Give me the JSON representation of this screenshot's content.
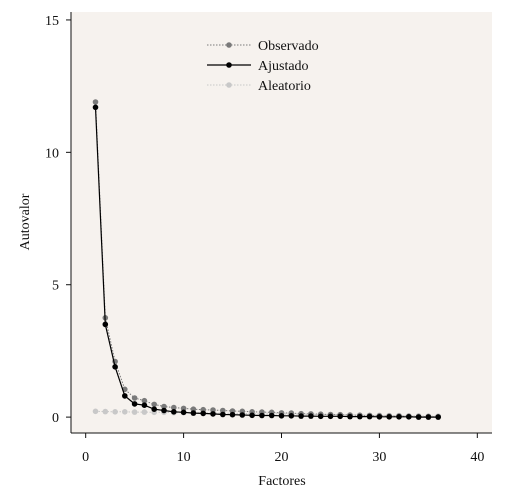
{
  "chart_data": {
    "type": "line",
    "title": "",
    "xlabel": "Factores",
    "ylabel": "Autovalor",
    "xlim": [
      -1.5,
      41.5
    ],
    "ylim": [
      -0.6,
      15.3
    ],
    "xticks": [
      0,
      10,
      20,
      30,
      40
    ],
    "yticks": [
      0,
      5,
      10,
      15
    ],
    "grid": false,
    "legend_position": "top-center",
    "colors": {
      "plot_background": "#f6f2ee",
      "axis": "#111111"
    },
    "series": [
      {
        "name": "Observado",
        "color": "#7a7a7a",
        "line_style": "dotted",
        "x": [
          1,
          2,
          3,
          4,
          5,
          6,
          7,
          8,
          9,
          10,
          11,
          12,
          13,
          14,
          15,
          16,
          17,
          18,
          19,
          20,
          21,
          22,
          23,
          24,
          25,
          26,
          27,
          28,
          29,
          30,
          31,
          32,
          33,
          34,
          35,
          36
        ],
        "y": [
          11.9,
          3.75,
          2.1,
          1.05,
          0.72,
          0.62,
          0.48,
          0.4,
          0.36,
          0.33,
          0.3,
          0.28,
          0.27,
          0.25,
          0.23,
          0.22,
          0.2,
          0.19,
          0.18,
          0.16,
          0.15,
          0.13,
          0.12,
          0.11,
          0.1,
          0.09,
          0.08,
          0.07,
          0.06,
          0.05,
          0.04,
          0.04,
          0.03,
          0.02,
          0.02,
          0.01
        ]
      },
      {
        "name": "Ajustado",
        "color": "#000000",
        "line_style": "solid",
        "x": [
          1,
          2,
          3,
          4,
          5,
          6,
          7,
          8,
          9,
          10,
          11,
          12,
          13,
          14,
          15,
          16,
          17,
          18,
          19,
          20,
          21,
          22,
          23,
          24,
          25,
          26,
          27,
          28,
          29,
          30,
          31,
          32,
          33,
          34,
          35,
          36
        ],
        "y": [
          11.7,
          3.5,
          1.9,
          0.8,
          0.5,
          0.45,
          0.3,
          0.25,
          0.2,
          0.18,
          0.15,
          0.14,
          0.12,
          0.1,
          0.09,
          0.08,
          0.07,
          0.06,
          0.06,
          0.05,
          0.05,
          0.04,
          0.04,
          0.03,
          0.03,
          0.03,
          0.02,
          0.02,
          0.02,
          0.01,
          0.01,
          0.01,
          0.01,
          0.0,
          0.0,
          0.0
        ]
      },
      {
        "name": "Aleatorio",
        "color": "#c8c8c8",
        "line_style": "dotted",
        "x": [
          1,
          2,
          3,
          4,
          5,
          6,
          7,
          8,
          9,
          10,
          11,
          12,
          13,
          14,
          15,
          16,
          17,
          18,
          19,
          20,
          21,
          22,
          23,
          24,
          25,
          26,
          27,
          28,
          29,
          30,
          31,
          32,
          33,
          34,
          35,
          36
        ],
        "y": [
          0.22,
          0.21,
          0.2,
          0.2,
          0.19,
          0.19,
          0.18,
          0.18,
          0.17,
          0.17,
          0.16,
          0.16,
          0.15,
          0.15,
          0.14,
          0.14,
          0.13,
          0.13,
          0.12,
          0.12,
          0.11,
          0.11,
          0.1,
          0.1,
          0.09,
          0.09,
          0.08,
          0.08,
          0.07,
          0.07,
          0.06,
          0.06,
          0.05,
          0.05,
          0.04,
          0.04
        ]
      }
    ]
  }
}
